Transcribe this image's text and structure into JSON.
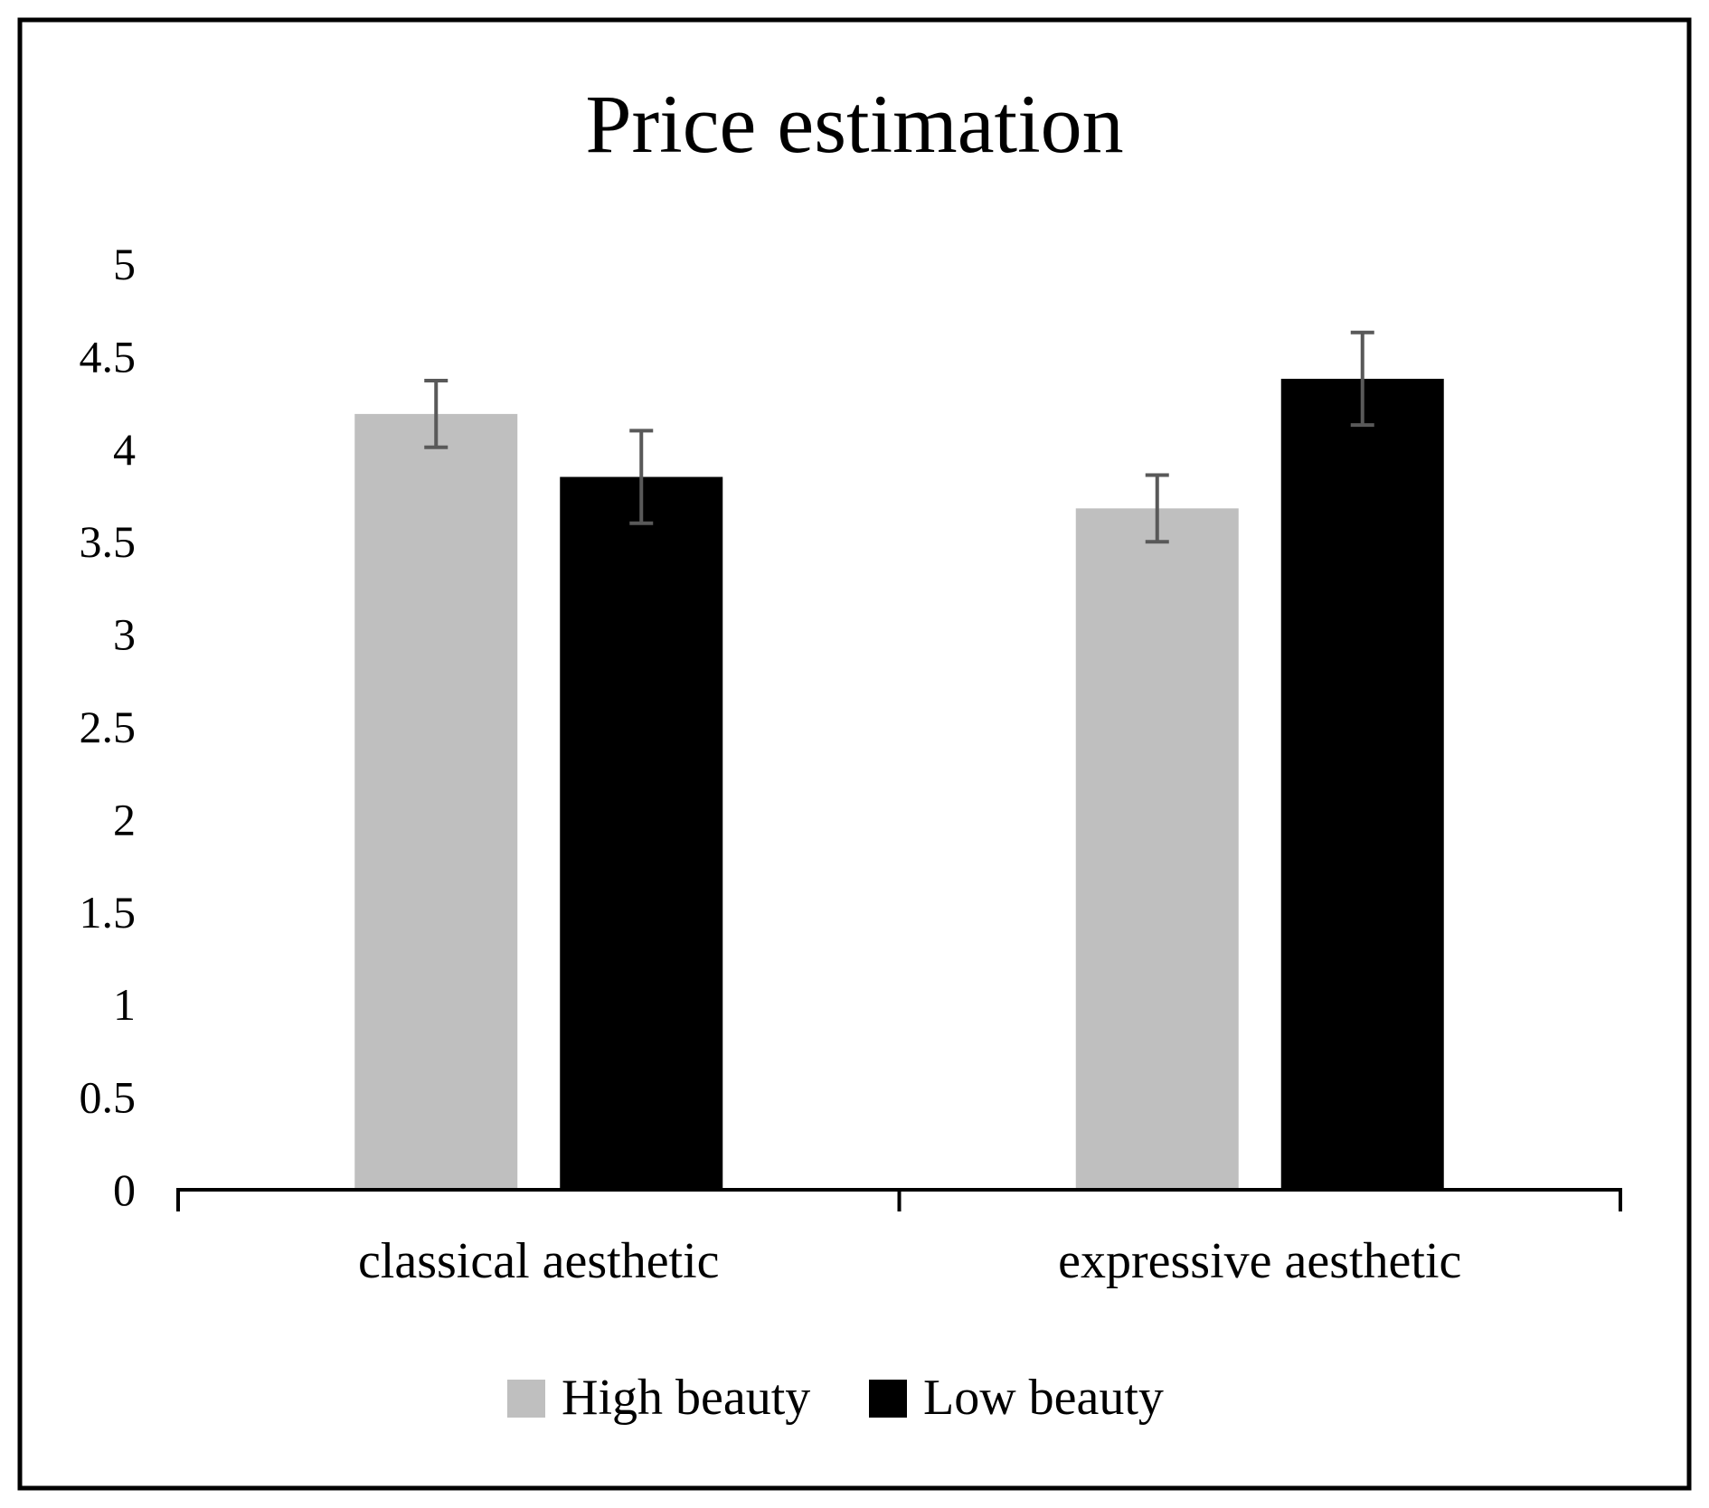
{
  "chart_data": {
    "type": "bar",
    "title": "Price estimation",
    "xlabel": "",
    "ylabel": "",
    "ylim": [
      0,
      5
    ],
    "yticks": [
      0,
      0.5,
      1,
      1.5,
      2,
      2.5,
      3,
      3.5,
      4,
      4.5,
      5
    ],
    "ytick_labels": [
      "0",
      "0.5",
      "1",
      "1.5",
      "2",
      "2.5",
      "3",
      "3.5",
      "4",
      "4.5",
      "5"
    ],
    "categories": [
      "classical aesthetic",
      "expressive aesthetic"
    ],
    "series": [
      {
        "name": "High beauty",
        "color": "#bfbfbf",
        "values": [
          4.19,
          3.68
        ],
        "errors": [
          0.18,
          0.18
        ]
      },
      {
        "name": "Low beauty",
        "color": "#000000",
        "values": [
          3.85,
          4.38
        ],
        "errors": [
          0.25,
          0.25
        ]
      }
    ],
    "error_bar_color": "#595959",
    "grid": false,
    "legend_position": "bottom-center"
  }
}
